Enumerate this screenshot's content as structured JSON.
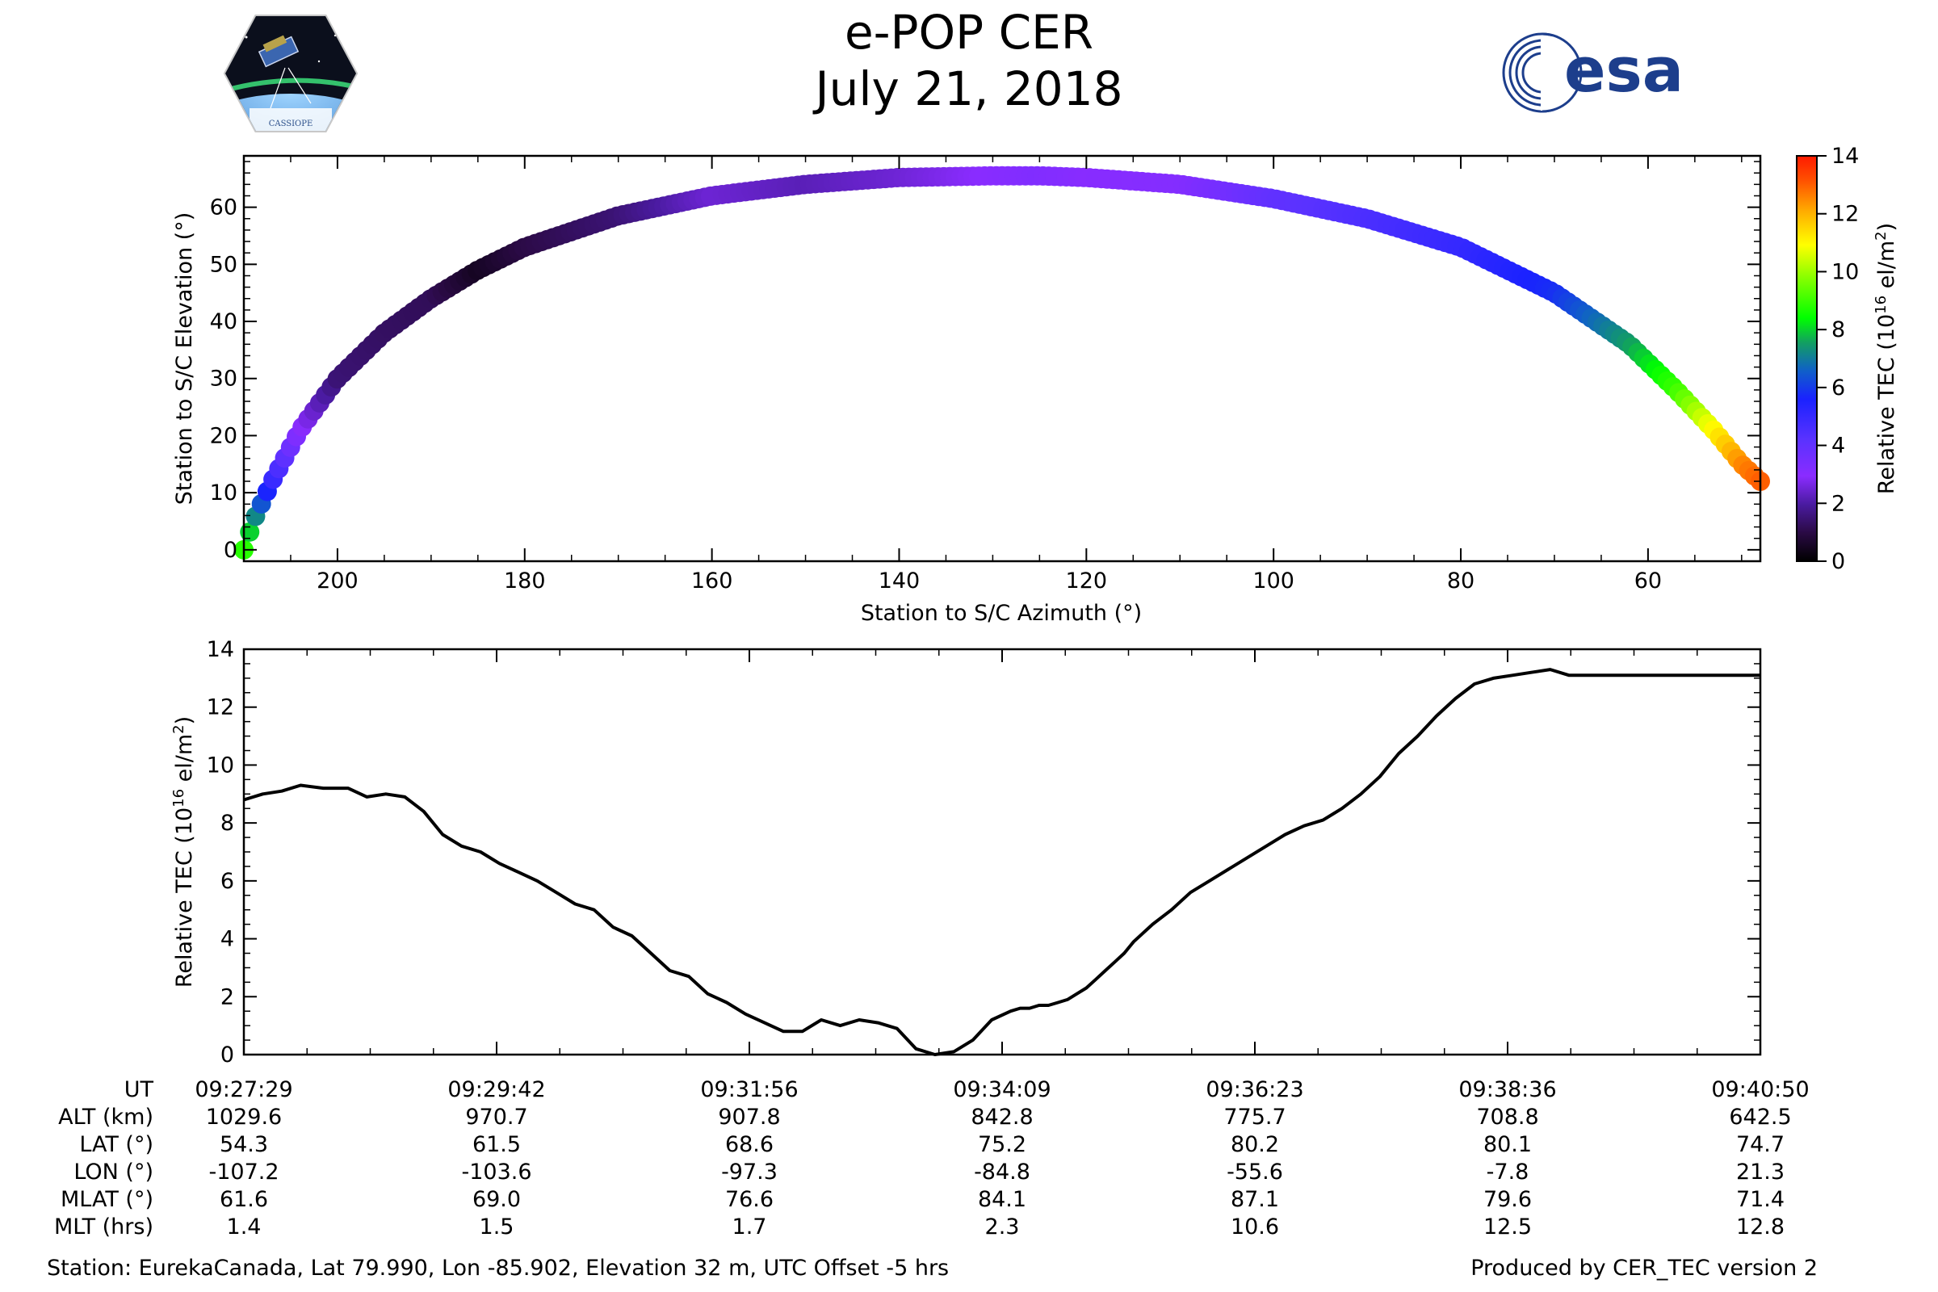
{
  "header": {
    "title": "e-POP CER",
    "date": "July 21, 2018",
    "logo_left_text": "CASSIOPE",
    "logo_right_text": "esa"
  },
  "colorbar": {
    "label_main": "Relative TEC (10",
    "label_sup": "16",
    "label_unit": " el/m",
    "label_sup2": "2",
    "label_close": ")",
    "ticks": [
      "0",
      "2",
      "4",
      "6",
      "8",
      "10",
      "12",
      "14"
    ]
  },
  "chart_data": [
    {
      "type": "scatter",
      "title": "",
      "xlabel": "Station to S/C Azimuth (°)",
      "ylabel": "Station to S/C Elevation (°)",
      "xlim": [
        210,
        48
      ],
      "ylim": [
        -2,
        69
      ],
      "xticks": [
        200,
        180,
        160,
        140,
        120,
        100,
        80,
        60
      ],
      "yticks": [
        0,
        10,
        20,
        30,
        40,
        50,
        60
      ],
      "colorscale": {
        "name": "gist_ncar-like",
        "min": 0,
        "max": 14
      },
      "track": {
        "azimuth": [
          210,
          209,
          207,
          204,
          200,
          195,
          190,
          185,
          180,
          170,
          160,
          150,
          140,
          130,
          125,
          120,
          110,
          100,
          90,
          80,
          70,
          62,
          57,
          53,
          50,
          48
        ],
        "elevation": [
          0,
          5,
          12,
          21,
          30,
          38,
          44,
          49,
          53,
          58.5,
          62,
          64,
          65.2,
          65.5,
          65.5,
          65.2,
          64,
          61.5,
          58,
          53,
          45,
          36,
          28,
          21,
          15,
          12
        ],
        "tec": [
          8.8,
          7.5,
          5,
          3,
          1.5,
          1.3,
          1.2,
          0.5,
          1,
          1.5,
          2.5,
          2.2,
          2.5,
          3,
          3.2,
          3,
          3.1,
          4,
          4.5,
          5,
          5.8,
          7.5,
          9,
          11,
          12.5,
          13
        ]
      }
    },
    {
      "type": "line",
      "title": "",
      "xlabel": "",
      "ylabel": "Relative TEC (10^16 el/m^2)",
      "xlim": [
        0,
        801
      ],
      "ylim": [
        0,
        14
      ],
      "yticks": [
        0,
        2,
        4,
        6,
        8,
        10,
        12,
        14
      ],
      "x_seconds": [
        0,
        10,
        20,
        30,
        42,
        55,
        65,
        75,
        85,
        95,
        105,
        115,
        125,
        135,
        145,
        155,
        165,
        175,
        185,
        195,
        205,
        215,
        225,
        235,
        245,
        255,
        265,
        275,
        285,
        295,
        305,
        315,
        325,
        335,
        345,
        355,
        365,
        375,
        385,
        395,
        405,
        410,
        415,
        420,
        425,
        430,
        435,
        440,
        445,
        450,
        455,
        460,
        465,
        470,
        480,
        490,
        500,
        510,
        520,
        530,
        540,
        550,
        560,
        570,
        580,
        590,
        600,
        610,
        620,
        630,
        640,
        650,
        660,
        670,
        680,
        690,
        700,
        710,
        720,
        730,
        740,
        750,
        760,
        770,
        780,
        785,
        790,
        801
      ],
      "tec": [
        8.8,
        9.0,
        9.1,
        9.3,
        9.2,
        9.2,
        8.9,
        9.0,
        8.9,
        8.4,
        7.6,
        7.2,
        7.0,
        6.6,
        6.3,
        6.0,
        5.6,
        5.2,
        5.0,
        4.4,
        4.1,
        3.5,
        2.9,
        2.7,
        2.1,
        1.8,
        1.4,
        1.1,
        0.8,
        0.8,
        1.2,
        1.0,
        1.2,
        1.1,
        0.9,
        0.2,
        0.0,
        0.1,
        0.5,
        1.2,
        1.5,
        1.6,
        1.6,
        1.7,
        1.7,
        1.8,
        1.9,
        2.1,
        2.3,
        2.6,
        2.9,
        3.2,
        3.5,
        3.9,
        4.5,
        5.0,
        5.6,
        6.0,
        6.4,
        6.8,
        7.2,
        7.6,
        7.9,
        8.1,
        8.5,
        9.0,
        9.6,
        10.4,
        11.0,
        11.7,
        12.3,
        12.8,
        13.0,
        13.1,
        13.2,
        13.3,
        13.1,
        13.1,
        13.1,
        13.1,
        13.1,
        13.1,
        13.1,
        13.1,
        13.1,
        13.1,
        13.1,
        13.1
      ]
    }
  ],
  "table": {
    "row_labels": [
      "UT",
      "ALT (km)",
      "LAT (°)",
      "LON (°)",
      "MLAT (°)",
      "MLT (hrs)"
    ],
    "columns": [
      [
        "09:27:29",
        "1029.6",
        "54.3",
        "-107.2",
        "61.6",
        "1.4"
      ],
      [
        "09:29:42",
        "970.7",
        "61.5",
        "-103.6",
        "69.0",
        "1.5"
      ],
      [
        "09:31:56",
        "907.8",
        "68.6",
        "-97.3",
        "76.6",
        "1.7"
      ],
      [
        "09:34:09",
        "842.8",
        "75.2",
        "-84.8",
        "84.1",
        "2.3"
      ],
      [
        "09:36:23",
        "775.7",
        "80.2",
        "-55.6",
        "87.1",
        "10.6"
      ],
      [
        "09:38:36",
        "708.8",
        "80.1",
        "-7.8",
        "79.6",
        "12.5"
      ],
      [
        "09:40:50",
        "642.5",
        "74.7",
        "21.3",
        "71.4",
        "12.8"
      ]
    ]
  },
  "footer": {
    "station": "Station: EurekaCanada, Lat 79.990, Lon -85.902, Elevation 32 m, UTC Offset -5 hrs",
    "produced_by": "Produced by CER_TEC version 2"
  }
}
